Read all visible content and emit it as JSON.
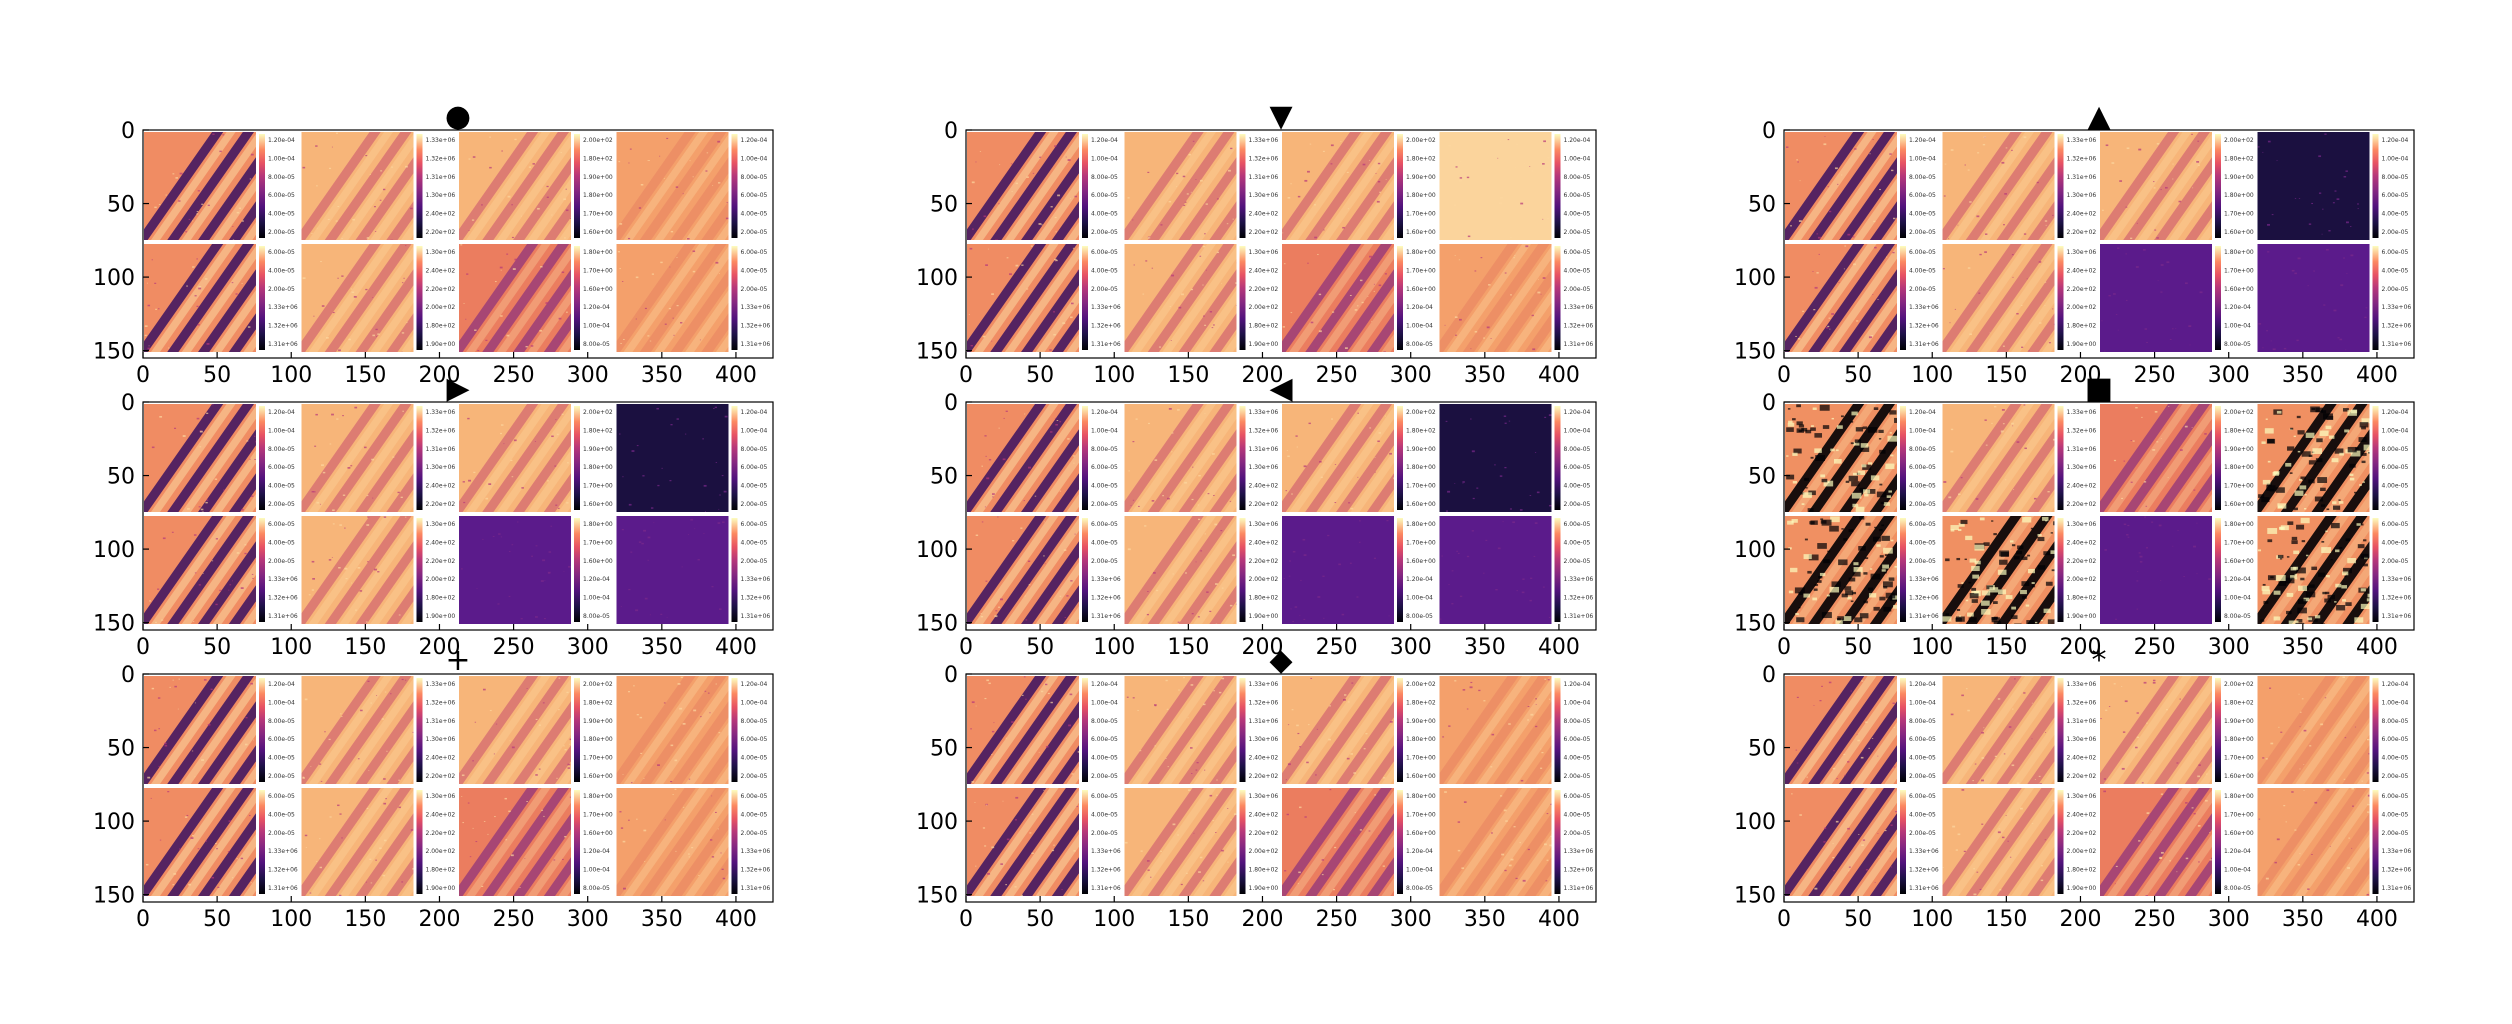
{
  "figure": {
    "panels": [
      {
        "marker": "●",
        "marker_icon": "circle-marker",
        "variant": "normal"
      },
      {
        "marker": "▼",
        "marker_icon": "triangle-down-marker",
        "variant": "normal"
      },
      {
        "marker": "▲",
        "marker_icon": "triangle-up-marker",
        "variant": "dark_last"
      },
      {
        "marker": "▶",
        "marker_icon": "triangle-right-marker",
        "variant": "dark_last"
      },
      {
        "marker": "◀",
        "marker_icon": "triangle-left-marker",
        "variant": "dark_last"
      },
      {
        "marker": "■",
        "marker_icon": "square-marker",
        "variant": "noisy"
      },
      {
        "marker": "+",
        "marker_icon": "plus-marker",
        "variant": "normal"
      },
      {
        "marker": "◆",
        "marker_icon": "diamond-marker",
        "variant": "normal"
      },
      {
        "marker": "*",
        "marker_icon": "star-marker",
        "variant": "normal"
      }
    ],
    "x_ticks": [
      "0",
      "50",
      "100",
      "150",
      "200",
      "250",
      "300",
      "350",
      "400"
    ],
    "y_ticks": [
      "0",
      "50",
      "100",
      "150"
    ],
    "x_range": [
      0,
      425
    ],
    "y_range": [
      0,
      155
    ],
    "colormap": "magma",
    "colorbar_tick_labels": [
      "1.20e-04",
      "1.00e-04",
      "8.00e-05",
      "6.00e-05",
      "4.00e-05",
      "2.00e-05",
      "1.33e+06",
      "1.32e+06",
      "1.31e+06",
      "1.30e+06",
      "2.40e+02",
      "2.20e+02",
      "2.00e+02",
      "1.80e+02",
      "1.90e+00",
      "1.80e+00",
      "1.70e+00",
      "1.60e+00"
    ]
  }
}
